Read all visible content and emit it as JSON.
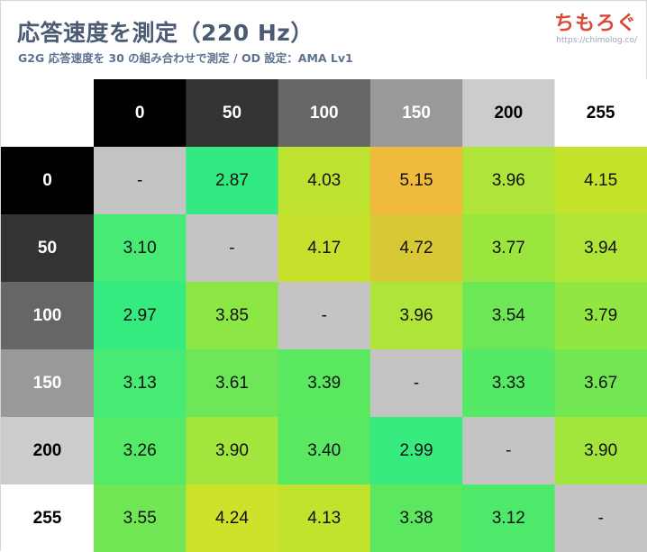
{
  "header": {
    "title": "応答速度を測定（220 Hz）",
    "subtitle": "G2G 応答速度を 30 の組み合わせで測定 / OD 設定：AMA Lv1"
  },
  "logo": {
    "mark": "ちもろぐ",
    "url": "https://chimolog.co/"
  },
  "chart_data": {
    "type": "heatmap",
    "title": "応答速度を測定（220 Hz）",
    "subtitle": "G2G 応答速度を 30 の組み合わせで測定 / OD 設定：AMA Lv1",
    "columns": [
      "0",
      "50",
      "100",
      "150",
      "200",
      "255"
    ],
    "rows": [
      "0",
      "50",
      "100",
      "150",
      "200",
      "255"
    ],
    "values": [
      [
        null,
        2.87,
        4.03,
        5.15,
        3.96,
        4.15
      ],
      [
        3.1,
        null,
        4.17,
        4.72,
        3.77,
        3.94
      ],
      [
        2.97,
        3.85,
        null,
        3.96,
        3.54,
        3.79
      ],
      [
        3.13,
        3.61,
        3.39,
        null,
        3.33,
        3.67
      ],
      [
        3.26,
        3.9,
        3.4,
        2.99,
        null,
        3.9
      ],
      [
        3.55,
        4.24,
        4.13,
        3.38,
        3.12,
        null
      ]
    ],
    "labels": [
      [
        "-",
        "2.87",
        "4.03",
        "5.15",
        "3.96",
        "4.15"
      ],
      [
        "3.10",
        "-",
        "4.17",
        "4.72",
        "3.77",
        "3.94"
      ],
      [
        "2.97",
        "3.85",
        "-",
        "3.96",
        "3.54",
        "3.79"
      ],
      [
        "3.13",
        "3.61",
        "3.39",
        "-",
        "3.33",
        "3.67"
      ],
      [
        "3.26",
        "3.90",
        "3.40",
        "2.99",
        "-",
        "3.90"
      ],
      [
        "3.55",
        "4.24",
        "4.13",
        "3.38",
        "3.12",
        "-"
      ]
    ],
    "header_colors": [
      "#000000",
      "#333333",
      "#666666",
      "#999999",
      "#cccccc",
      "#ffffff"
    ],
    "header_text_colors": [
      "#ffffff",
      "#ffffff",
      "#ffffff",
      "#ffffff",
      "#000000",
      "#000000"
    ],
    "cell_colors": [
      [
        "#c4c4c4",
        "#33ea82",
        "#bde330",
        "#f0bb3d",
        "#afe438",
        "#c4e42c"
      ],
      [
        "#46ea74",
        "#c4c4c4",
        "#c6e02c",
        "#d8c836",
        "#9ae63f",
        "#b0e436"
      ],
      [
        "#35eb80",
        "#8ce643",
        "#c4c4c4",
        "#afe438",
        "#6de756",
        "#92e641"
      ],
      [
        "#47ea72",
        "#6de758",
        "#5ae860",
        "#c4c4c4",
        "#54e964",
        "#73e753"
      ],
      [
        "#54e966",
        "#a2e53c",
        "#5ae862",
        "#37eb7e",
        "#c4c4c4",
        "#a2e53c"
      ],
      [
        "#72e756",
        "#cde22a",
        "#c1e32e",
        "#5be860",
        "#4ee96a",
        "#c4c4c4"
      ]
    ],
    "diagonal_color": "#c4c4c4"
  }
}
